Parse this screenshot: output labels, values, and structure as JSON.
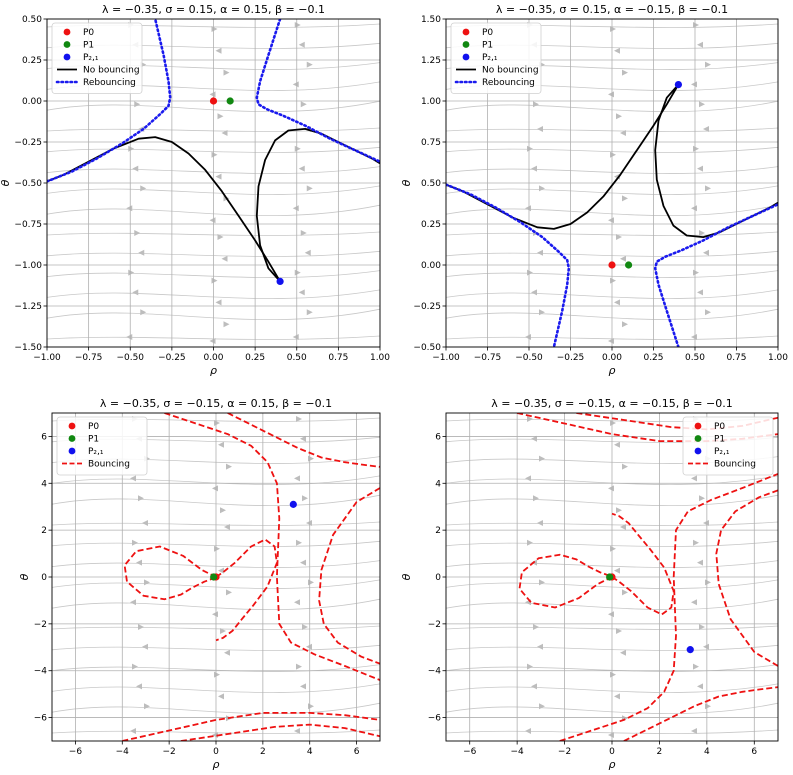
{
  "chart_data": [
    {
      "type": "line",
      "title": "λ = −0.35, σ = 0.15, α = 0.15, β = −0.1",
      "xlabel": "ρ",
      "ylabel": "θ",
      "xlim": [
        -1.0,
        1.0
      ],
      "ylim": [
        -1.5,
        0.5
      ],
      "xticks": [
        -1.0,
        -0.75,
        -0.5,
        -0.25,
        0.0,
        0.25,
        0.5,
        0.75,
        1.0
      ],
      "xtick_labels": [
        "−1.00",
        "−0.75",
        "−0.50",
        "−0.25",
        "0.00",
        "0.25",
        "0.50",
        "0.75",
        "1.00"
      ],
      "yticks": [
        0.5,
        0.25,
        0.0,
        -0.25,
        -0.5,
        -0.75,
        -1.0,
        -1.25,
        -1.5
      ],
      "ytick_labels": [
        "0.50",
        "0.25",
        "0.00",
        "−0.25",
        "−0.50",
        "−0.75",
        "−1.00",
        "−1.25",
        "−1.50"
      ],
      "grid": true,
      "legend_position": "top-left",
      "legend": [
        {
          "label": "P0",
          "kind": "marker",
          "color": "#ee1111"
        },
        {
          "label": "P1",
          "kind": "marker",
          "color": "#118811"
        },
        {
          "label": "P₂,₁",
          "kind": "marker",
          "color": "#1111ee"
        },
        {
          "label": "No bouncing",
          "kind": "solid",
          "color": "#000000"
        },
        {
          "label": "Rebouncing",
          "kind": "dotted",
          "color": "#1a1aee"
        }
      ],
      "points": [
        {
          "name": "P0",
          "x": 0.0,
          "y": 0.0,
          "color": "#ee1111"
        },
        {
          "name": "P1",
          "x": 0.1,
          "y": 0.0,
          "color": "#118811"
        },
        {
          "name": "P2,1",
          "x": 0.4,
          "y": -1.1,
          "color": "#1111ee"
        }
      ],
      "series": [
        {
          "name": "No bouncing",
          "style": "solid",
          "color": "#000000",
          "x": [
            0.4,
            0.33,
            0.25,
            0.15,
            0.05,
            -0.05,
            -0.15,
            -0.25,
            -0.35,
            -0.45,
            -0.6,
            -0.75,
            -0.9,
            -1.0
          ],
          "y": [
            -1.1,
            -0.98,
            -0.85,
            -0.7,
            -0.55,
            -0.42,
            -0.32,
            -0.25,
            -0.22,
            -0.23,
            -0.29,
            -0.37,
            -0.45,
            -0.49
          ]
        },
        {
          "name": "No bouncing",
          "style": "solid",
          "color": "#000000",
          "x": [
            0.4,
            0.33,
            0.28,
            0.26,
            0.27,
            0.31,
            0.37,
            0.45,
            0.55,
            0.65,
            0.75,
            0.85,
            0.95,
            1.0
          ],
          "y": [
            -1.1,
            -1.02,
            -0.88,
            -0.7,
            -0.52,
            -0.36,
            -0.24,
            -0.18,
            -0.17,
            -0.2,
            -0.25,
            -0.3,
            -0.35,
            -0.38
          ]
        },
        {
          "name": "Rebouncing",
          "style": "dotted",
          "color": "#1a1aee",
          "x": [
            -1.0,
            -0.85,
            -0.7,
            -0.55,
            -0.42,
            -0.32,
            -0.27,
            -0.26,
            -0.27,
            -0.3,
            -0.35
          ],
          "y": [
            -0.49,
            -0.43,
            -0.35,
            -0.26,
            -0.17,
            -0.08,
            -0.03,
            0.02,
            0.12,
            0.28,
            0.5
          ]
        },
        {
          "name": "Rebouncing",
          "style": "dotted",
          "color": "#1a1aee",
          "x": [
            0.4,
            0.33,
            0.28,
            0.26,
            0.27,
            0.32,
            0.42,
            0.55,
            0.7,
            0.85,
            1.0
          ],
          "y": [
            0.5,
            0.28,
            0.12,
            0.02,
            -0.02,
            -0.05,
            -0.09,
            -0.15,
            -0.23,
            -0.3,
            -0.37
          ]
        }
      ]
    },
    {
      "type": "line",
      "title": "λ = −0.35, σ = 0.15, α = −0.15, β = −0.1",
      "xlabel": "ρ",
      "ylabel": "θ",
      "xlim": [
        -1.0,
        1.0
      ],
      "ylim": [
        -0.5,
        1.5
      ],
      "xticks": [
        -1.0,
        -0.75,
        -0.5,
        -0.25,
        0.0,
        0.25,
        0.5,
        0.75,
        1.0
      ],
      "xtick_labels": [
        "−1.00",
        "−0.75",
        "−0.50",
        "−0.25",
        "0.00",
        "0.25",
        "0.50",
        "0.75",
        "1.00"
      ],
      "yticks": [
        1.5,
        1.25,
        1.0,
        0.75,
        0.5,
        0.25,
        0.0,
        -0.25,
        -0.5
      ],
      "ytick_labels": [
        "1.50",
        "1.25",
        "1.00",
        "0.75",
        "0.50",
        "0.25",
        "0.00",
        "−0.25",
        "−0.50"
      ],
      "grid": true,
      "legend_position": "top-left",
      "legend": [
        {
          "label": "P0",
          "kind": "marker",
          "color": "#ee1111"
        },
        {
          "label": "P1",
          "kind": "marker",
          "color": "#118811"
        },
        {
          "label": "P₂,₁",
          "kind": "marker",
          "color": "#1111ee"
        },
        {
          "label": "No bouncing",
          "kind": "solid",
          "color": "#000000"
        },
        {
          "label": "Rebouncing",
          "kind": "dotted",
          "color": "#1a1aee"
        }
      ],
      "points": [
        {
          "name": "P0",
          "x": 0.0,
          "y": 0.0,
          "color": "#ee1111"
        },
        {
          "name": "P1",
          "x": 0.1,
          "y": 0.0,
          "color": "#118811"
        },
        {
          "name": "P2,1",
          "x": 0.4,
          "y": 1.1,
          "color": "#1111ee"
        }
      ],
      "series": [
        {
          "name": "No bouncing",
          "style": "solid",
          "color": "#000000",
          "x": [
            0.4,
            0.33,
            0.25,
            0.15,
            0.05,
            -0.05,
            -0.15,
            -0.25,
            -0.35,
            -0.45,
            -0.6,
            -0.75,
            -0.9,
            -1.0
          ],
          "y": [
            1.1,
            0.98,
            0.85,
            0.7,
            0.55,
            0.42,
            0.32,
            0.25,
            0.22,
            0.23,
            0.29,
            0.37,
            0.45,
            0.49
          ]
        },
        {
          "name": "No bouncing",
          "style": "solid",
          "color": "#000000",
          "x": [
            0.4,
            0.33,
            0.28,
            0.26,
            0.27,
            0.31,
            0.37,
            0.45,
            0.55,
            0.65,
            0.75,
            0.85,
            0.95,
            1.0
          ],
          "y": [
            1.1,
            1.02,
            0.88,
            0.7,
            0.52,
            0.36,
            0.24,
            0.18,
            0.17,
            0.2,
            0.25,
            0.3,
            0.35,
            0.38
          ]
        },
        {
          "name": "Rebouncing",
          "style": "dotted",
          "color": "#1a1aee",
          "x": [
            -1.0,
            -0.85,
            -0.7,
            -0.55,
            -0.42,
            -0.32,
            -0.27,
            -0.26,
            -0.27,
            -0.3,
            -0.35
          ],
          "y": [
            0.49,
            0.43,
            0.35,
            0.26,
            0.17,
            0.08,
            0.03,
            -0.02,
            -0.12,
            -0.28,
            -0.5
          ]
        },
        {
          "name": "Rebouncing",
          "style": "dotted",
          "color": "#1a1aee",
          "x": [
            0.4,
            0.33,
            0.28,
            0.26,
            0.27,
            0.32,
            0.42,
            0.55,
            0.7,
            0.85,
            1.0
          ],
          "y": [
            -0.5,
            -0.28,
            -0.12,
            -0.02,
            0.02,
            0.05,
            0.09,
            0.15,
            0.23,
            0.3,
            0.37
          ]
        }
      ]
    },
    {
      "type": "line",
      "title": "λ = −0.35, σ = −0.15, α = 0.15, β = −0.1",
      "xlabel": "ρ",
      "ylabel": "θ",
      "xlim": [
        -7,
        7
      ],
      "ylim": [
        -7,
        7
      ],
      "xticks": [
        -6,
        -4,
        -2,
        0,
        2,
        4,
        6
      ],
      "xtick_labels": [
        "−6",
        "−4",
        "−2",
        "0",
        "2",
        "4",
        "6"
      ],
      "yticks": [
        6,
        4,
        2,
        0,
        -2,
        -4,
        -6
      ],
      "ytick_labels": [
        "6",
        "4",
        "2",
        "0",
        "−2",
        "−4",
        "−6"
      ],
      "grid": true,
      "legend_position": "top-left",
      "legend": [
        {
          "label": "P0",
          "kind": "marker",
          "color": "#ee1111"
        },
        {
          "label": "P1",
          "kind": "marker",
          "color": "#118811"
        },
        {
          "label": "P₂,₁",
          "kind": "marker",
          "color": "#1111ee"
        },
        {
          "label": "Bouncing",
          "kind": "dashed",
          "color": "#ee1111"
        }
      ],
      "points": [
        {
          "name": "P0",
          "x": 0.0,
          "y": 0.0,
          "color": "#ee1111"
        },
        {
          "name": "P1",
          "x": -0.1,
          "y": 0.0,
          "color": "#118811"
        },
        {
          "name": "P2,1",
          "x": 3.3,
          "y": 3.1,
          "color": "#1111ee"
        }
      ],
      "series": [
        {
          "name": "Bouncing",
          "style": "dashed",
          "color": "#ee1111",
          "x": [
            0.0,
            -0.6,
            -1.4,
            -2.4,
            -3.4,
            -3.9,
            -3.8,
            -3.1,
            -2.2,
            -1.5,
            -1.0,
            -0.5,
            -0.1,
            0.0
          ],
          "y": [
            0.0,
            0.3,
            0.9,
            1.3,
            1.1,
            0.5,
            -0.2,
            -0.8,
            -0.95,
            -0.75,
            -0.45,
            -0.2,
            -0.05,
            0.0
          ]
        },
        {
          "name": "Bouncing",
          "style": "dashed",
          "color": "#ee1111",
          "x": [
            0.0,
            0.3,
            0.8,
            1.5,
            2.1,
            2.5,
            2.6,
            2.2,
            1.6,
            1.1,
            0.7,
            0.3,
            0.0
          ],
          "y": [
            0.0,
            0.2,
            0.6,
            1.3,
            1.6,
            1.3,
            0.6,
            -0.4,
            -1.2,
            -1.8,
            -2.3,
            -2.6,
            -2.7
          ]
        },
        {
          "name": "Bouncing",
          "style": "dashed",
          "color": "#ee1111",
          "x": [
            -2.2,
            -1.0,
            0.5,
            1.5,
            2.2,
            2.6,
            2.7,
            2.6,
            2.7,
            3.2,
            4.2,
            5.5,
            7.0
          ],
          "y": [
            7.0,
            6.6,
            6.1,
            5.6,
            4.9,
            4.0,
            2.5,
            0.0,
            -2.0,
            -2.8,
            -3.3,
            -3.8,
            -4.4
          ]
        },
        {
          "name": "Bouncing",
          "style": "dashed",
          "color": "#ee1111",
          "x": [
            0.5,
            1.5,
            2.5,
            3.5,
            4.5,
            5.5,
            6.2,
            7.0
          ],
          "y": [
            7.0,
            6.5,
            6.0,
            5.5,
            5.1,
            4.9,
            4.8,
            4.7
          ]
        },
        {
          "name": "Bouncing",
          "style": "dashed",
          "color": "#ee1111",
          "x": [
            7.0,
            6.0,
            5.0,
            4.5,
            4.4,
            4.6,
            5.2,
            6.2,
            7.0
          ],
          "y": [
            3.8,
            3.2,
            1.8,
            0.3,
            -1.0,
            -2.0,
            -2.8,
            -3.4,
            -3.7
          ]
        },
        {
          "name": "Bouncing",
          "style": "dashed",
          "color": "#ee1111",
          "x": [
            -4.0,
            -2.0,
            0.0,
            2.0,
            4.0,
            5.5,
            7.0
          ],
          "y": [
            -7.0,
            -6.55,
            -6.1,
            -5.8,
            -5.8,
            -5.9,
            -6.1
          ]
        },
        {
          "name": "Bouncing",
          "style": "dashed",
          "color": "#ee1111",
          "x": [
            -1.5,
            0.5,
            2.5,
            4.0,
            5.5,
            7.0
          ],
          "y": [
            -7.0,
            -6.7,
            -6.4,
            -6.3,
            -6.45,
            -6.8
          ]
        }
      ]
    },
    {
      "type": "line",
      "title": "λ = −0.35, σ = −0.15, α = −0.15, β = −0.1",
      "xlabel": "ρ",
      "ylabel": "θ",
      "xlim": [
        -7,
        7
      ],
      "ylim": [
        -7,
        7
      ],
      "xticks": [
        -6,
        -4,
        -2,
        0,
        2,
        4,
        6
      ],
      "xtick_labels": [
        "−6",
        "−4",
        "−2",
        "0",
        "2",
        "4",
        "6"
      ],
      "yticks": [
        6,
        4,
        2,
        0,
        -2,
        -4,
        -6
      ],
      "ytick_labels": [
        "6",
        "4",
        "2",
        "0",
        "−2",
        "−4",
        "−6"
      ],
      "grid": true,
      "legend_position": "top-right",
      "legend": [
        {
          "label": "P0",
          "kind": "marker",
          "color": "#ee1111"
        },
        {
          "label": "P1",
          "kind": "marker",
          "color": "#118811"
        },
        {
          "label": "P₂,₁",
          "kind": "marker",
          "color": "#1111ee"
        },
        {
          "label": "Bouncing",
          "kind": "dashed",
          "color": "#ee1111"
        }
      ],
      "points": [
        {
          "name": "P0",
          "x": 0.0,
          "y": 0.0,
          "color": "#ee1111"
        },
        {
          "name": "P1",
          "x": -0.1,
          "y": 0.0,
          "color": "#118811"
        },
        {
          "name": "P2,1",
          "x": 3.3,
          "y": -3.1,
          "color": "#1111ee"
        }
      ],
      "series": [
        {
          "name": "Bouncing",
          "style": "dashed",
          "color": "#ee1111",
          "x": [
            0.0,
            -0.6,
            -1.4,
            -2.4,
            -3.4,
            -3.9,
            -3.8,
            -3.1,
            -2.2,
            -1.5,
            -1.0,
            -0.5,
            -0.1,
            0.0
          ],
          "y": [
            0.0,
            -0.3,
            -0.9,
            -1.3,
            -1.1,
            -0.5,
            0.2,
            0.8,
            0.95,
            0.75,
            0.45,
            0.2,
            0.05,
            0.0
          ]
        },
        {
          "name": "Bouncing",
          "style": "dashed",
          "color": "#ee1111",
          "x": [
            0.0,
            0.3,
            0.8,
            1.5,
            2.1,
            2.5,
            2.6,
            2.2,
            1.6,
            1.1,
            0.7,
            0.3,
            0.0
          ],
          "y": [
            0.0,
            -0.2,
            -0.6,
            -1.3,
            -1.6,
            -1.3,
            -0.6,
            0.4,
            1.2,
            1.8,
            2.3,
            2.6,
            2.7
          ]
        },
        {
          "name": "Bouncing",
          "style": "dashed",
          "color": "#ee1111",
          "x": [
            -2.2,
            -1.0,
            0.5,
            1.5,
            2.2,
            2.6,
            2.7,
            2.6,
            2.7,
            3.2,
            4.2,
            5.5,
            7.0
          ],
          "y": [
            -7.0,
            -6.6,
            -6.1,
            -5.6,
            -4.9,
            -4.0,
            -2.5,
            0.0,
            2.0,
            2.8,
            3.3,
            3.8,
            4.4
          ]
        },
        {
          "name": "Bouncing",
          "style": "dashed",
          "color": "#ee1111",
          "x": [
            0.5,
            1.5,
            2.5,
            3.5,
            4.5,
            5.5,
            6.2,
            7.0
          ],
          "y": [
            -7.0,
            -6.5,
            -6.0,
            -5.5,
            -5.1,
            -4.9,
            -4.8,
            -4.7
          ]
        },
        {
          "name": "Bouncing",
          "style": "dashed",
          "color": "#ee1111",
          "x": [
            7.0,
            6.0,
            5.0,
            4.5,
            4.4,
            4.6,
            5.2,
            6.2,
            7.0
          ],
          "y": [
            -3.8,
            -3.2,
            -1.8,
            -0.3,
            1.0,
            2.0,
            2.8,
            3.4,
            3.7
          ]
        },
        {
          "name": "Bouncing",
          "style": "dashed",
          "color": "#ee1111",
          "x": [
            -4.0,
            -2.0,
            0.0,
            2.0,
            4.0,
            5.5,
            7.0
          ],
          "y": [
            7.0,
            6.55,
            6.1,
            5.8,
            5.8,
            5.9,
            6.1
          ]
        },
        {
          "name": "Bouncing",
          "style": "dashed",
          "color": "#ee1111",
          "x": [
            -1.5,
            0.5,
            2.5,
            4.0,
            5.5,
            7.0
          ],
          "y": [
            7.0,
            6.7,
            6.4,
            6.3,
            6.45,
            6.8
          ]
        }
      ]
    }
  ]
}
